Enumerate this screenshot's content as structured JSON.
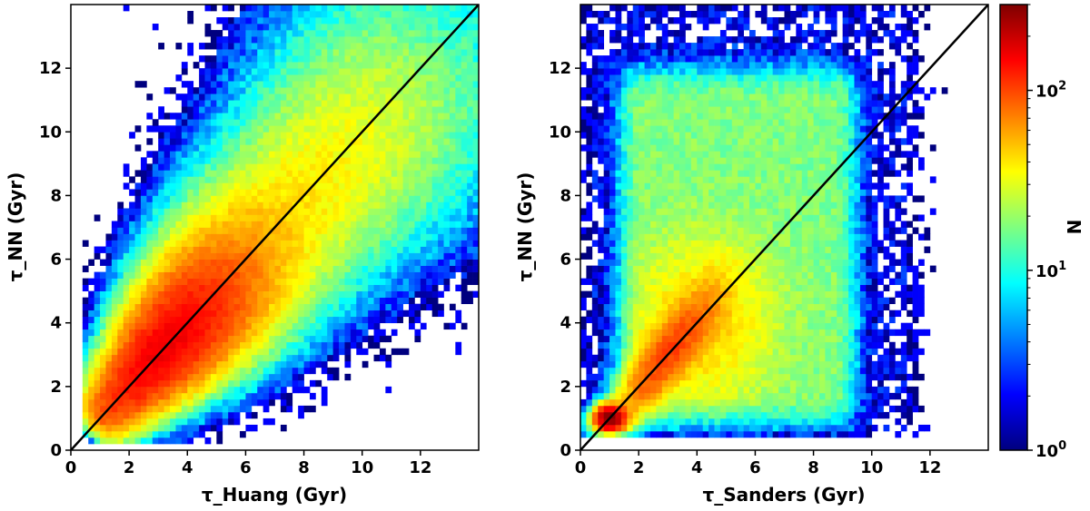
{
  "chart_data": [
    {
      "type": "heatmap",
      "name": "huang",
      "xlabel": "τ_Huang (Gyr)",
      "ylabel": "τ_NN (Gyr)",
      "xlim": [
        0,
        14
      ],
      "ylim": [
        0,
        14
      ],
      "xticks": [
        0,
        2,
        4,
        6,
        8,
        10,
        12
      ],
      "yticks": [
        0,
        2,
        4,
        6,
        8,
        10,
        12
      ],
      "xtick_labels": [
        "0",
        "2",
        "4",
        "6",
        "8",
        "10",
        "12"
      ],
      "ytick_labels": [
        "0",
        "2",
        "4",
        "6",
        "8",
        "10",
        "12"
      ],
      "reference_line": {
        "label": "one-to-one",
        "from": [
          0,
          0
        ],
        "to": [
          14,
          14
        ],
        "color": "#000000"
      },
      "bin_size_gyr": 0.2,
      "density_model": {
        "description": "approximate 2D histogram of star counts (N) per bin, estimated from visual",
        "ridge": "y = x",
        "peak": {
          "x": 3.0,
          "y": 3.0,
          "N": 150
        },
        "x_range": [
          0.5,
          14.0
        ],
        "y_range": [
          0.3,
          14.0
        ]
      }
    },
    {
      "type": "heatmap",
      "name": "sanders",
      "xlabel": "τ_Sanders (Gyr)",
      "ylabel": "τ_NN (Gyr)",
      "xlim": [
        0,
        14
      ],
      "ylim": [
        0,
        14
      ],
      "xticks": [
        0,
        2,
        4,
        6,
        8,
        10,
        12
      ],
      "yticks": [
        0,
        2,
        4,
        6,
        8,
        10,
        12
      ],
      "xtick_labels": [
        "0",
        "2",
        "4",
        "6",
        "8",
        "10",
        "12"
      ],
      "ytick_labels": [
        "0",
        "2",
        "4",
        "6",
        "8",
        "10",
        "12"
      ],
      "reference_line": {
        "label": "one-to-one",
        "from": [
          0,
          0
        ],
        "to": [
          14,
          14
        ],
        "color": "#000000"
      },
      "bin_size_gyr": 0.2,
      "density_model": {
        "description": "approximate 2D histogram of star counts (N) per bin, estimated from visual",
        "ridge": "broad plateau x 1-9, y 1-11",
        "peak": {
          "x": 1.0,
          "y": 1.0,
          "N": 300
        },
        "x_range": [
          0.0,
          12.6
        ],
        "y_range": [
          0.3,
          14.0
        ]
      }
    }
  ],
  "colorbar": {
    "label": "N",
    "scale": "log",
    "range": [
      1,
      300
    ],
    "ticks": [
      {
        "value": 1,
        "base": "10",
        "exp": "0"
      },
      {
        "value": 10,
        "base": "10",
        "exp": "1"
      },
      {
        "value": 100,
        "base": "10",
        "exp": "2"
      }
    ],
    "colormap": "jet",
    "colors": [
      "#00007f",
      "#0000ff",
      "#007fff",
      "#00ffff",
      "#7fff7f",
      "#ffff00",
      "#ff7f00",
      "#ff0000",
      "#7f0000"
    ]
  }
}
